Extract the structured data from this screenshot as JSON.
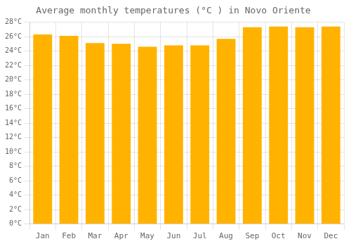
{
  "chart_data": {
    "type": "bar",
    "title": "Average monthly temperatures (°C ) in Novo Oriente",
    "categories": [
      "Jan",
      "Feb",
      "Mar",
      "Apr",
      "May",
      "Jun",
      "Jul",
      "Aug",
      "Sep",
      "Oct",
      "Nov",
      "Dec"
    ],
    "values": [
      26.3,
      26.1,
      25.1,
      25.0,
      24.6,
      24.8,
      24.8,
      25.7,
      27.3,
      27.4,
      27.3,
      27.4
    ],
    "color": "#FFB300",
    "ylim": [
      0,
      28
    ],
    "yticks": [
      {
        "value": 0,
        "label": "0°C"
      },
      {
        "value": 2,
        "label": "2°C"
      },
      {
        "value": 4,
        "label": "4°C"
      },
      {
        "value": 6,
        "label": "6°C"
      },
      {
        "value": 8,
        "label": "8°C"
      },
      {
        "value": 10,
        "label": "10°C"
      },
      {
        "value": 12,
        "label": "12°C"
      },
      {
        "value": 14,
        "label": "14°C"
      },
      {
        "value": 16,
        "label": "16°C"
      },
      {
        "value": 18,
        "label": "18°C"
      },
      {
        "value": 20,
        "label": "20°C"
      },
      {
        "value": 22,
        "label": "22°C"
      },
      {
        "value": 24,
        "label": "24°C"
      },
      {
        "value": 26,
        "label": "26°C"
      },
      {
        "value": 28,
        "label": "28°C"
      }
    ],
    "grid": true
  }
}
